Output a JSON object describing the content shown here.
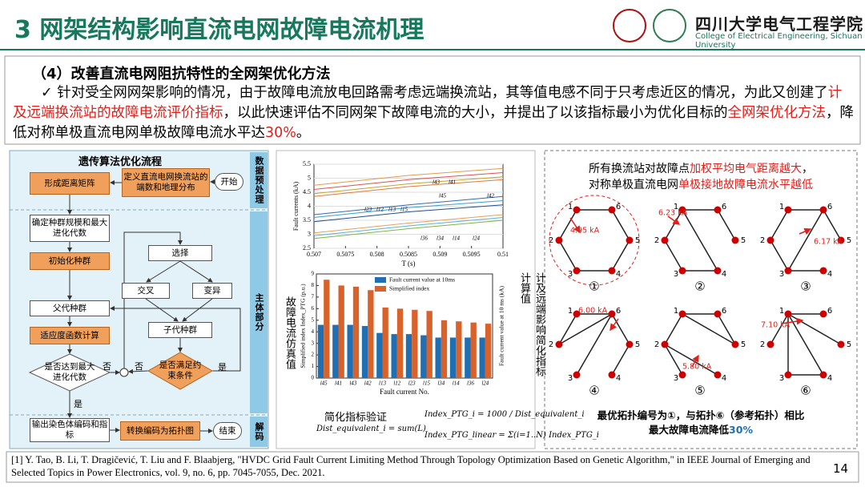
{
  "header": {
    "title": "3 网架结构影响直流电网故障电流机理",
    "school_name": "四川大学电气工程学院",
    "school_name_en": "College of Electrical Engineering, Sichuan University"
  },
  "section": {
    "heading": "（4）改善直流电网阻抗特性的全网架优化方法",
    "segments": [
      {
        "text": "✓ 针对受全网网架影响的情况，由于故障电流放电回路需考虑远端换流站，其等值电感不同于只考虑近区的情况，为此又创建了",
        "highlight": false
      },
      {
        "text": "计及远端换流站的故障电流评价指标",
        "highlight": true
      },
      {
        "text": "，以此快速评估不同网架下故障电流的大小，并提出了以该指标最小为优化目标的",
        "highlight": false
      },
      {
        "text": "全网架优化方法",
        "highlight": true
      },
      {
        "text": "，降低对称单极直流电网单极故障电流水平达",
        "highlight": false
      },
      {
        "text": "30%",
        "highlight": true
      },
      {
        "text": "。",
        "highlight": false
      }
    ]
  },
  "flowchart": {
    "title": "遗传算法优化流程",
    "stages": [
      "数据预处理",
      "主体部分",
      "解码"
    ],
    "nodes": [
      "形成距离矩阵",
      "定义直流电网换流站的端数和地理分布",
      "开始",
      "确定种群规模和最大进化代数",
      "初始化种群",
      "选择",
      "交叉",
      "变异",
      "父代种群",
      "子代种群",
      "适应度函数计算",
      "是否达到最大进化代数",
      "是否满足约束条件",
      "输出染色体编码和指标",
      "转换编码为拓扑图",
      "结束"
    ],
    "edge_labels": [
      "否",
      "否",
      "是",
      "是"
    ]
  },
  "chart_data": [
    {
      "type": "line",
      "x": [
        0.507,
        0.5085,
        0.51
      ],
      "xlim": [
        0.507,
        0.51
      ],
      "xticks": [
        0.507,
        0.5075,
        0.508,
        0.5085,
        0.509,
        0.5095,
        0.51
      ],
      "ylim": [
        2.5,
        5.5
      ],
      "yticks": [
        2.5,
        3,
        3.5,
        4,
        4.5,
        5,
        5.5
      ],
      "x_label": "T (s)",
      "y_label": "Fault currents (kA)",
      "annotations": [
        "l43",
        "l41",
        "l45",
        "l42",
        "l23",
        "l12",
        "l13",
        "l15",
        "l36",
        "l34",
        "l14",
        "l24"
      ],
      "series": [
        {
          "color": "#e39b4a",
          "values": [
            4.75,
            5.1,
            5.35
          ]
        },
        {
          "color": "#d9534f",
          "values": [
            4.6,
            4.95,
            5.2
          ]
        },
        {
          "color": "#c9a227",
          "values": [
            4.45,
            4.8,
            5.05
          ]
        },
        {
          "color": "#e07b39",
          "values": [
            4.35,
            4.7,
            4.95
          ]
        },
        {
          "color": "#2f6db5",
          "values": [
            3.7,
            4.05,
            4.35
          ]
        },
        {
          "color": "#3aa0c8",
          "values": [
            3.6,
            3.95,
            4.2
          ]
        },
        {
          "color": "#1f4e8c",
          "values": [
            3.45,
            3.8,
            4.05
          ]
        },
        {
          "color": "#e5a05a",
          "values": [
            3.05,
            3.4,
            3.7
          ]
        },
        {
          "color": "#58b3d6",
          "values": [
            2.95,
            3.3,
            3.6
          ]
        },
        {
          "color": "#7ab648",
          "values": [
            2.85,
            3.2,
            3.5
          ]
        }
      ]
    },
    {
      "type": "bar",
      "categories": [
        "l45",
        "l41",
        "l43",
        "l42",
        "l13",
        "l12",
        "l23",
        "l15",
        "l34",
        "l14",
        "l36",
        "l24"
      ],
      "ylim": [
        0,
        9
      ],
      "yticks": [
        0,
        1,
        2,
        3,
        4,
        5,
        6,
        7,
        8,
        9
      ],
      "x_label": "Fault current No.",
      "y_label": "Simplified index Index_PTG (p.u.)",
      "y2_label": "Fault current value at 10 ms (kA)",
      "left_caption": "故障电流仿真值",
      "right_caption": "计及远端影响简化指标计算值",
      "series": [
        {
          "name": "Fault current value at 10ms",
          "color": "#1f6fb2",
          "values": [
            4.6,
            4.6,
            4.6,
            4.5,
            3.9,
            3.8,
            3.8,
            3.7,
            3.5,
            3.5,
            3.5,
            3.5
          ]
        },
        {
          "name": "Simplified index",
          "color": "#d8622a",
          "values": [
            8.5,
            8.0,
            7.9,
            7.6,
            6.1,
            6.0,
            5.9,
            5.8,
            5.0,
            4.9,
            4.8,
            4.7
          ]
        }
      ]
    }
  ],
  "formula": {
    "label": "简化指标验证",
    "eq1": "Dist_equivalent_i = sum(L)",
    "eq2": "Index_PTG_i = 1000 / Dist_equivalent_i",
    "eq3": "Index_PTG_linear = Σ(i=1..N) Index_PTG_i"
  },
  "topologies": {
    "caption": [
      {
        "text": "所有换流站对故障点",
        "highlight": false
      },
      {
        "text": "加权平均电气距离越大",
        "highlight": true
      },
      {
        "text": "，",
        "highlight": false
      }
    ],
    "caption2": [
      {
        "text": "对称单极直流电网",
        "highlight": false
      },
      {
        "text": "单极接地故障电流水平越低",
        "highlight": true
      }
    ],
    "node_labels": [
      "1",
      "2",
      "3",
      "4",
      "5",
      "6"
    ],
    "items": [
      {
        "label": "①",
        "current": "4.95 kA"
      },
      {
        "label": "②",
        "current": "6.23 kA"
      },
      {
        "label": "③",
        "current": "6.17 kA"
      },
      {
        "label": "④",
        "current": "6.00 kA"
      },
      {
        "label": "⑤",
        "current": "5.80 kA"
      },
      {
        "label": "⑥",
        "current": "7.10 kA"
      }
    ],
    "conclusion": "最优拓扑编号为①，与拓扑⑥（参考拓扑）相比",
    "conclusion2": "最大故障电流降低",
    "conclusion_value": "30%"
  },
  "footer": {
    "reference": "[1] Y. Tao, B. Li, T. Dragičević, T. Liu and F. Blaabjerg, \"HVDC Grid Fault Current Limiting Method Through Topology Optimization Based on Genetic Algorithm,\" in IEEE Journal of Emerging and Selected Topics in Power Electronics, vol. 9, no. 6, pp. 7045-7055, Dec. 2021.",
    "page": "14"
  }
}
